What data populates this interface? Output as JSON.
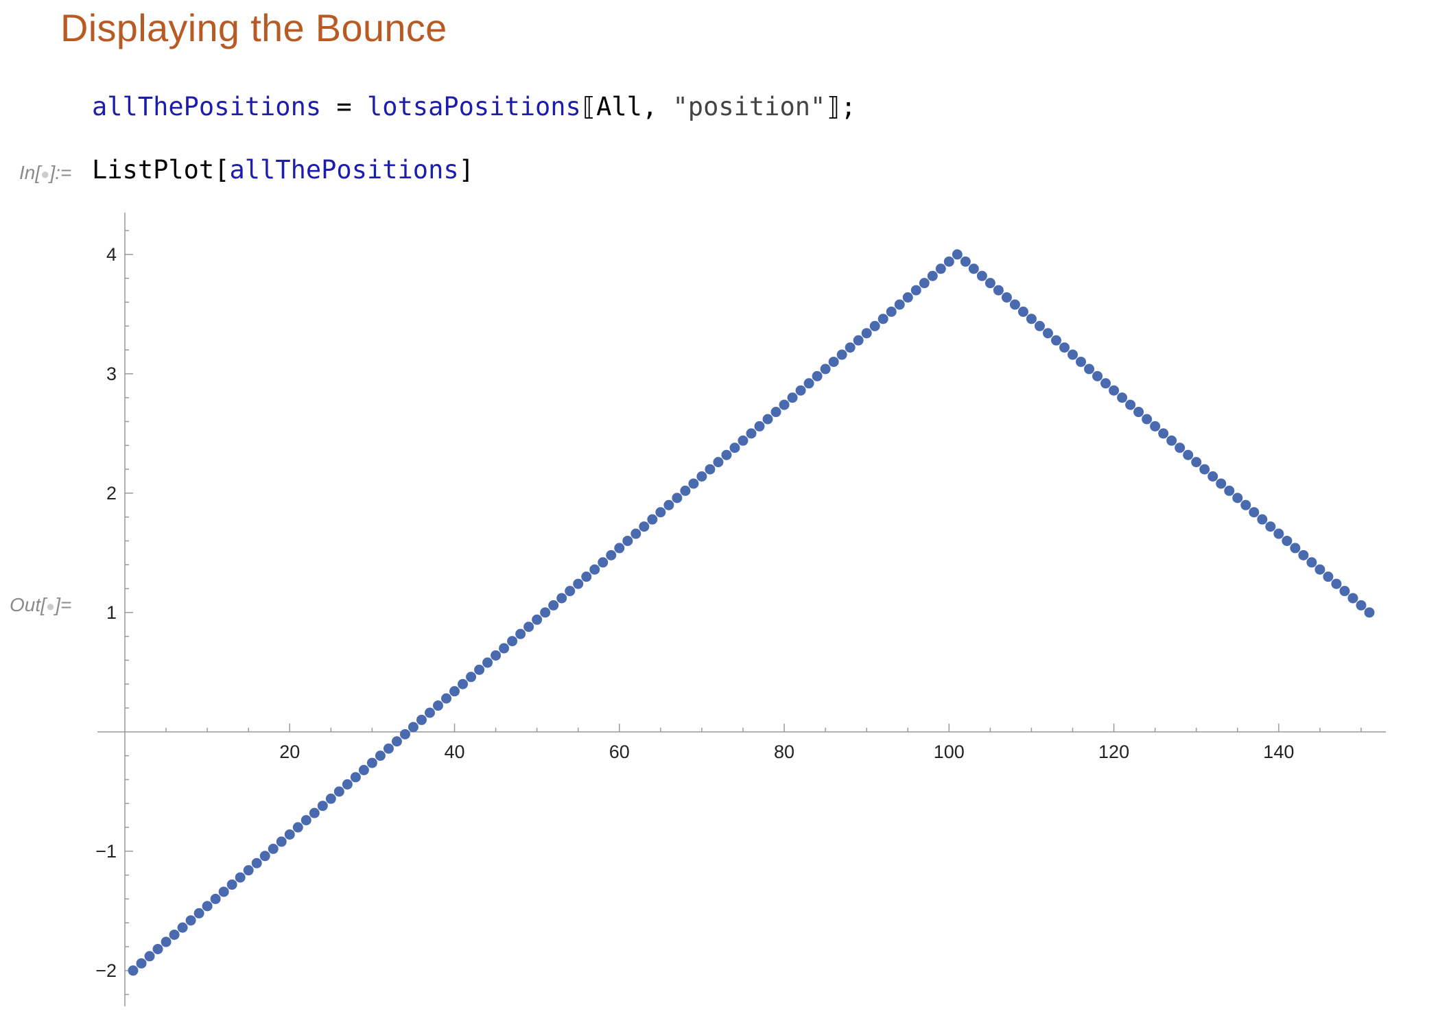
{
  "section": {
    "title": "Displaying the Bounce"
  },
  "cells": {
    "assignment": {
      "var": "allThePositions",
      "op": " = ",
      "source": "lotsaPositions",
      "open": "⟦",
      "arg1": "All",
      "sep": ", ",
      "arg2": "\"position\"",
      "close": "⟧;"
    },
    "input": {
      "label_prefix": "In[",
      "label_suffix": "]:=",
      "func": "ListPlot",
      "open": "[",
      "arg": "allThePositions",
      "close": "]"
    },
    "output": {
      "label_prefix": "Out[",
      "label_suffix": "]="
    },
    "indicator_glyph": "●"
  },
  "colors": {
    "section_title": "#b85a24",
    "symbol": "#1c1cae",
    "point": "#4a6ab0",
    "axis": "#999999"
  },
  "chart_data": {
    "type": "scatter",
    "title": "",
    "xlabel": "",
    "ylabel": "",
    "xlim": [
      0,
      153
    ],
    "ylim": [
      -2.3,
      4.35
    ],
    "x_ticks": [
      20,
      40,
      60,
      80,
      100,
      120,
      140
    ],
    "y_ticks": [
      -2,
      -1,
      1,
      2,
      3,
      4
    ],
    "y_tick_labels": [
      "−2",
      "−1",
      "1",
      "2",
      "3",
      "4"
    ],
    "x_minor_step": 5,
    "y_minor_step": 0.2,
    "grid": false,
    "legend": "none",
    "series": [
      {
        "description": "151 points: rises linearly from -2 at x=1 to 4 at x=101, then falls linearly to 1 at x=151",
        "x": [
          1,
          2,
          3,
          4,
          5,
          6,
          7,
          8,
          9,
          10,
          11,
          12,
          13,
          14,
          15,
          16,
          17,
          18,
          19,
          20,
          21,
          22,
          23,
          24,
          25,
          26,
          27,
          28,
          29,
          30,
          31,
          32,
          33,
          34,
          35,
          36,
          37,
          38,
          39,
          40,
          41,
          42,
          43,
          44,
          45,
          46,
          47,
          48,
          49,
          50,
          51,
          52,
          53,
          54,
          55,
          56,
          57,
          58,
          59,
          60,
          61,
          62,
          63,
          64,
          65,
          66,
          67,
          68,
          69,
          70,
          71,
          72,
          73,
          74,
          75,
          76,
          77,
          78,
          79,
          80,
          81,
          82,
          83,
          84,
          85,
          86,
          87,
          88,
          89,
          90,
          91,
          92,
          93,
          94,
          95,
          96,
          97,
          98,
          99,
          100,
          101,
          102,
          103,
          104,
          105,
          106,
          107,
          108,
          109,
          110,
          111,
          112,
          113,
          114,
          115,
          116,
          117,
          118,
          119,
          120,
          121,
          122,
          123,
          124,
          125,
          126,
          127,
          128,
          129,
          130,
          131,
          132,
          133,
          134,
          135,
          136,
          137,
          138,
          139,
          140,
          141,
          142,
          143,
          144,
          145,
          146,
          147,
          148,
          149,
          150,
          151
        ],
        "y": [
          -2,
          -1.94,
          -1.88,
          -1.82,
          -1.76,
          -1.7,
          -1.64,
          -1.58,
          -1.52,
          -1.46,
          -1.4,
          -1.34,
          -1.28,
          -1.22,
          -1.16,
          -1.1,
          -1.04,
          -0.98,
          -0.92,
          -0.86,
          -0.8,
          -0.74,
          -0.68,
          -0.62,
          -0.56,
          -0.5,
          -0.44,
          -0.38,
          -0.32,
          -0.26,
          -0.2,
          -0.14,
          -0.08,
          -0.02,
          0.04,
          0.1,
          0.16,
          0.22,
          0.28,
          0.34,
          0.4,
          0.46,
          0.52,
          0.58,
          0.64,
          0.7,
          0.76,
          0.82,
          0.88,
          0.94,
          1,
          1.06,
          1.12,
          1.18,
          1.24,
          1.3,
          1.36,
          1.42,
          1.48,
          1.54,
          1.6,
          1.66,
          1.72,
          1.78,
          1.84,
          1.9,
          1.96,
          2.02,
          2.08,
          2.14,
          2.2,
          2.26,
          2.32,
          2.38,
          2.44,
          2.5,
          2.56,
          2.62,
          2.68,
          2.74,
          2.8,
          2.86,
          2.92,
          2.98,
          3.04,
          3.1,
          3.16,
          3.22,
          3.28,
          3.34,
          3.4,
          3.46,
          3.52,
          3.58,
          3.64,
          3.7,
          3.76,
          3.82,
          3.88,
          3.94,
          4,
          3.94,
          3.88,
          3.82,
          3.76,
          3.7,
          3.64,
          3.58,
          3.52,
          3.46,
          3.4,
          3.34,
          3.28,
          3.22,
          3.16,
          3.1,
          3.04,
          2.98,
          2.92,
          2.86,
          2.8,
          2.74,
          2.68,
          2.62,
          2.56,
          2.5,
          2.44,
          2.38,
          2.32,
          2.26,
          2.2,
          2.14,
          2.08,
          2.02,
          1.96,
          1.9,
          1.84,
          1.78,
          1.72,
          1.66,
          1.6,
          1.54,
          1.48,
          1.42,
          1.36,
          1.3,
          1.24,
          1.18,
          1.12,
          1.06,
          1
        ]
      }
    ]
  }
}
